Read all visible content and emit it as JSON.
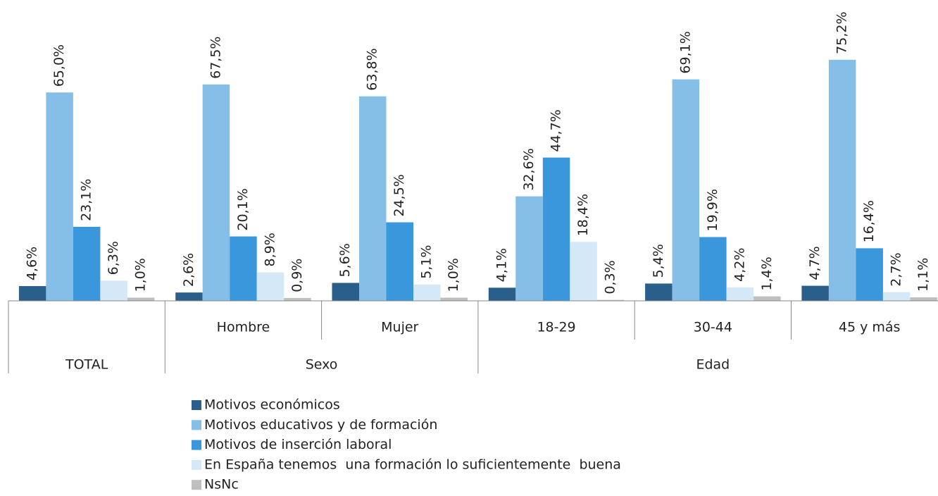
{
  "chart_data": {
    "type": "bar",
    "groups": [
      {
        "name": "TOTAL",
        "categories": [
          null
        ]
      },
      {
        "name": "Sexo",
        "categories": [
          "Hombre",
          "Mujer"
        ]
      },
      {
        "name": "Edad",
        "categories": [
          "18-29",
          "30-44",
          "45 y más"
        ]
      }
    ],
    "series": [
      {
        "name": "Motivos económicos",
        "color": "#2a5f8c",
        "values": [
          4.6,
          2.6,
          5.6,
          4.1,
          5.4,
          4.7
        ],
        "value_labels": [
          "4,6%",
          "2,6%",
          "5,6%",
          "4,1%",
          "5,4%",
          "4,7%"
        ]
      },
      {
        "name": "Motivos educativos y de formación",
        "color": "#85bfe8",
        "values": [
          65.0,
          67.5,
          63.8,
          32.6,
          69.1,
          75.2
        ],
        "value_labels": [
          "65,0%",
          "67,5%",
          "63,8%",
          "32,6%",
          "69,1%",
          "75,2%"
        ]
      },
      {
        "name": "Motivos de inserción laboral",
        "color": "#3a97db",
        "values": [
          23.1,
          20.1,
          24.5,
          44.7,
          19.9,
          16.4
        ],
        "value_labels": [
          "23,1%",
          "20,1%",
          "24,5%",
          "44,7%",
          "19,9%",
          "16,4%"
        ]
      },
      {
        "name": "En España tenemos  una formación lo suficientemente  buena",
        "color": "#d5e8f7",
        "values": [
          6.3,
          8.9,
          5.1,
          18.4,
          4.2,
          2.7
        ],
        "value_labels": [
          "6,3%",
          "8,9%",
          "5,1%",
          "18,4%",
          "4,2%",
          "2,7%"
        ]
      },
      {
        "name": "NsNc",
        "color": "#bfbfbf",
        "values": [
          1.0,
          0.9,
          1.0,
          0.3,
          1.4,
          1.1
        ],
        "value_labels": [
          "1,0%",
          "0,9%",
          "1,0%",
          "0,3%",
          "1,4%",
          "1,1%"
        ]
      }
    ],
    "ylim": [
      0,
      80
    ]
  }
}
